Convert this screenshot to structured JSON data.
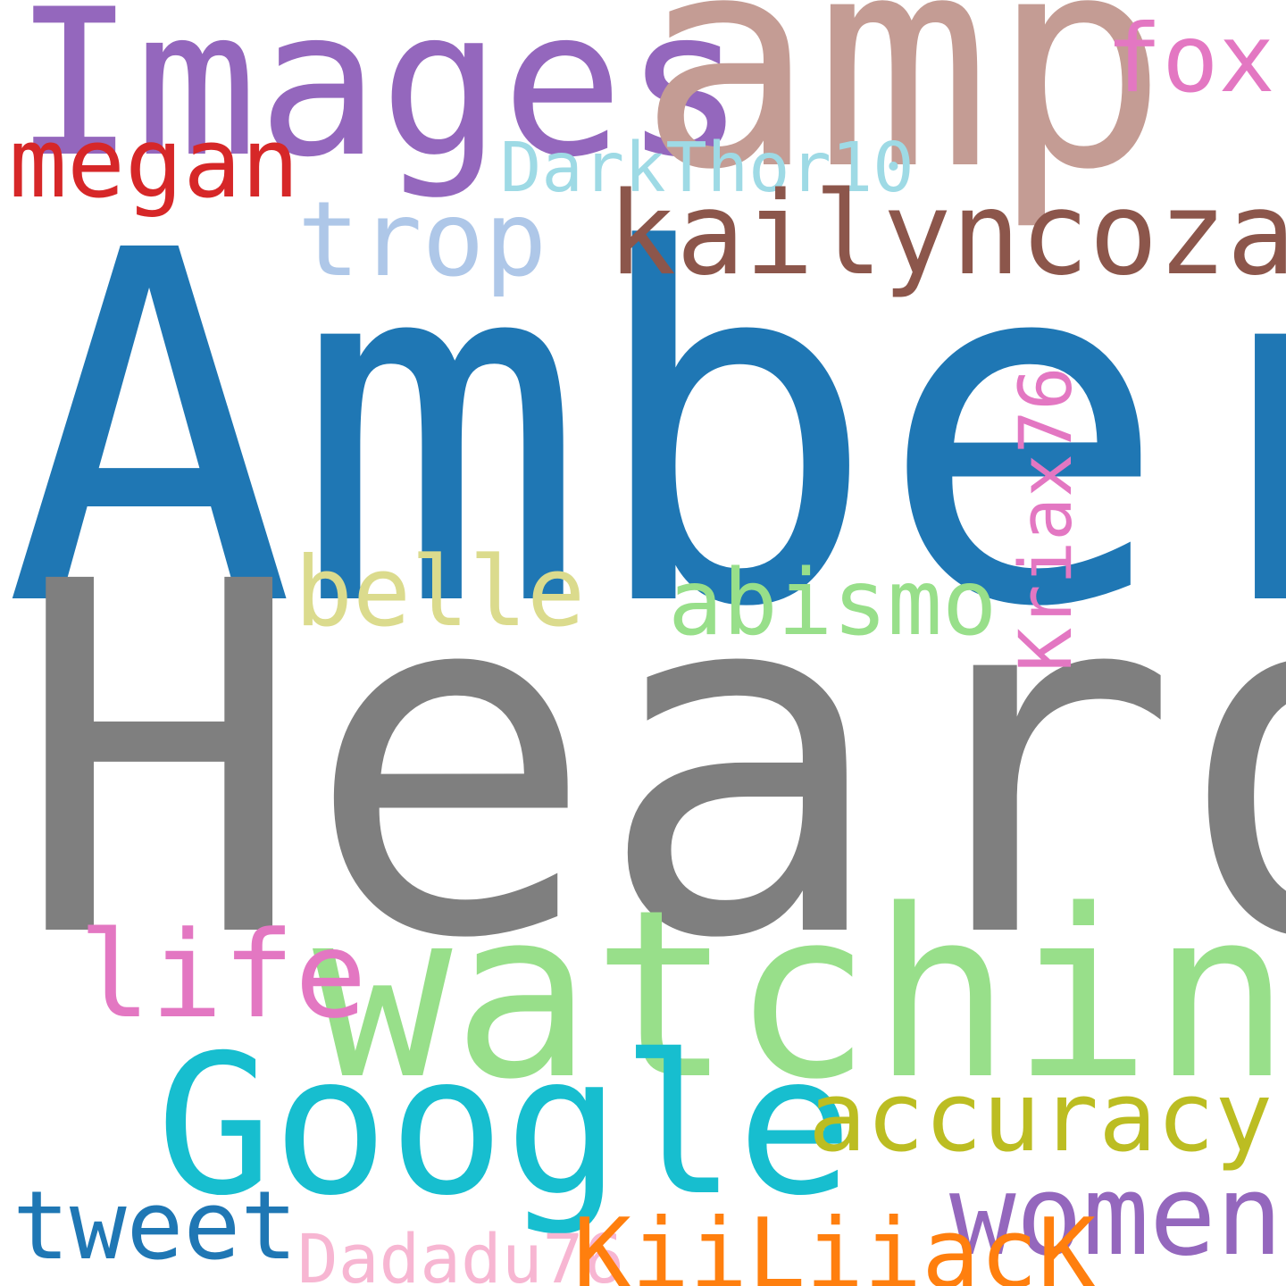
{
  "words": [
    {
      "id": "amber",
      "text": "Amber",
      "color": "#1f77b4"
    },
    {
      "id": "heard",
      "text": "Heard",
      "color": "#7f7f7f"
    },
    {
      "id": "images",
      "text": "Images",
      "color": "#9467bd"
    },
    {
      "id": "amp",
      "text": "amp",
      "color": "#c49c94"
    },
    {
      "id": "fox",
      "text": "fox",
      "color": "#e377c2"
    },
    {
      "id": "megan",
      "text": "megan",
      "color": "#d62728"
    },
    {
      "id": "darkthor10",
      "text": "DarkThor10",
      "color": "#9edae5"
    },
    {
      "id": "trop",
      "text": "trop",
      "color": "#aec7e8"
    },
    {
      "id": "kailyncozad",
      "text": "kailyncozad",
      "color": "#8c564b"
    },
    {
      "id": "kriax76",
      "text": "Kriax76",
      "color": "#e377c2"
    },
    {
      "id": "belle",
      "text": "belle",
      "color": "#dbdb8d"
    },
    {
      "id": "abismo",
      "text": "abismo",
      "color": "#98df8a"
    },
    {
      "id": "watching",
      "text": "watching",
      "color": "#98df8a"
    },
    {
      "id": "life",
      "text": "life",
      "color": "#e377c2"
    },
    {
      "id": "google",
      "text": "Google",
      "color": "#17becf"
    },
    {
      "id": "accuracy",
      "text": "accuracy",
      "color": "#bcbd22"
    },
    {
      "id": "women",
      "text": "women",
      "color": "#9467bd"
    },
    {
      "id": "tweet",
      "text": "tweet",
      "color": "#1f77b4"
    },
    {
      "id": "dadadu76",
      "text": "Dadadu76",
      "color": "#f7b6d2"
    },
    {
      "id": "kiiliiack",
      "text": "KiiLiiacK",
      "color": "#ff7f0e"
    }
  ]
}
